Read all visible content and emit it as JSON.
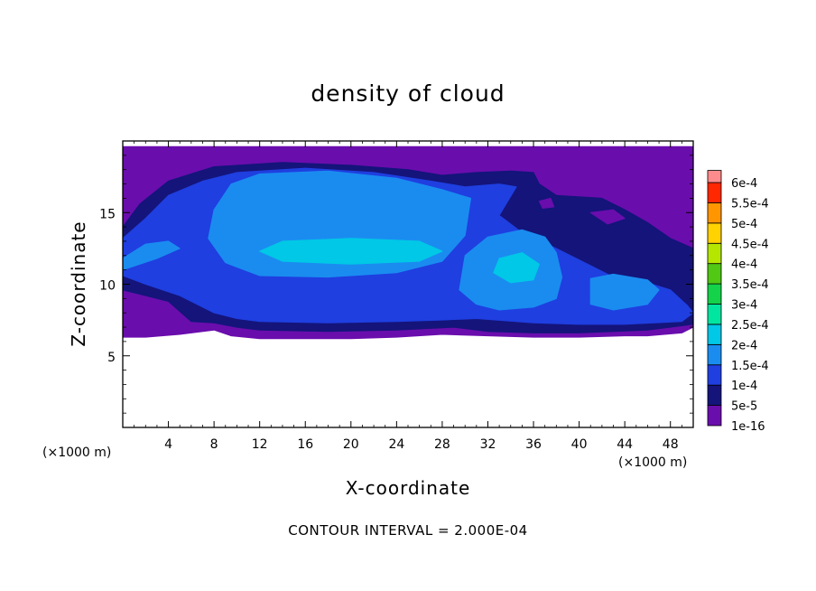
{
  "chart_data": {
    "type": "heatmap",
    "title": "density of cloud",
    "xlabel": "X-coordinate",
    "ylabel": "Z-coordinate",
    "x_unit": "(×1000 m)",
    "y_unit": "(×1000 m)",
    "xlim": [
      0,
      50
    ],
    "ylim": [
      0,
      20
    ],
    "x_ticks": [
      4,
      8,
      12,
      16,
      20,
      24,
      28,
      32,
      36,
      40,
      44,
      48
    ],
    "y_ticks": [
      5,
      10,
      15
    ],
    "footer": "CONTOUR INTERVAL = 2.000E-04",
    "colorbar": {
      "levels": [
        "1e-16",
        "5e-5",
        "1e-4",
        "1.5e-4",
        "2e-4",
        "2.5e-4",
        "3e-4",
        "3.5e-4",
        "4e-4",
        "4.5e-4",
        "5e-4",
        "5.5e-4",
        "6e-4"
      ],
      "colors": [
        "#6a0dad",
        "#14147a",
        "#1f3fe0",
        "#1a8cf0",
        "#00c8e6",
        "#00e6a0",
        "#14d24a",
        "#50c814",
        "#b4e600",
        "#ffd200",
        "#ff9600",
        "#ff2800",
        "#ff8c8c"
      ]
    },
    "regions": [
      {
        "level": 0,
        "points": [
          [
            0,
            19.6
          ],
          [
            50,
            19.6
          ],
          [
            50,
            7.0
          ],
          [
            49,
            6.6
          ],
          [
            46,
            6.4
          ],
          [
            44,
            6.4
          ],
          [
            40,
            6.3
          ],
          [
            36,
            6.3
          ],
          [
            32,
            6.4
          ],
          [
            28,
            6.5
          ],
          [
            24,
            6.3
          ],
          [
            20,
            6.2
          ],
          [
            16,
            6.2
          ],
          [
            12,
            6.2
          ],
          [
            9.5,
            6.4
          ],
          [
            8,
            6.8
          ],
          [
            5,
            6.5
          ],
          [
            2,
            6.3
          ],
          [
            0,
            6.3
          ]
        ]
      },
      {
        "level": 1,
        "points": [
          [
            0,
            14.0
          ],
          [
            1.5,
            15.6
          ],
          [
            4,
            17.2
          ],
          [
            8,
            18.2
          ],
          [
            14,
            18.5
          ],
          [
            20,
            18.3
          ],
          [
            25,
            18.0
          ],
          [
            28,
            17.6
          ],
          [
            31,
            17.8
          ],
          [
            34,
            17.9
          ],
          [
            36,
            17.8
          ],
          [
            36.5,
            17.0
          ],
          [
            38,
            16.2
          ],
          [
            42,
            16.0
          ],
          [
            44,
            15.2
          ],
          [
            46,
            14.3
          ],
          [
            48,
            13.2
          ],
          [
            50,
            12.5
          ],
          [
            50,
            7.2
          ],
          [
            46,
            6.8
          ],
          [
            40,
            6.6
          ],
          [
            36,
            6.6
          ],
          [
            32,
            6.7
          ],
          [
            29,
            7.0
          ],
          [
            24,
            6.8
          ],
          [
            18,
            6.7
          ],
          [
            12,
            6.8
          ],
          [
            10,
            7.0
          ],
          [
            8,
            7.3
          ],
          [
            6,
            7.4
          ],
          [
            4,
            8.8
          ],
          [
            2,
            9.2
          ],
          [
            0,
            9.6
          ]
        ]
      },
      {
        "level": 2,
        "points": [
          [
            0,
            13.2
          ],
          [
            2,
            14.6
          ],
          [
            4,
            16.2
          ],
          [
            7,
            17.2
          ],
          [
            10,
            17.8
          ],
          [
            16,
            18.1
          ],
          [
            22,
            17.8
          ],
          [
            27,
            17.2
          ],
          [
            30,
            16.8
          ],
          [
            33,
            17.0
          ],
          [
            34.5,
            16.8
          ],
          [
            33,
            14.8
          ],
          [
            35,
            13.6
          ],
          [
            38,
            12.5
          ],
          [
            40,
            11.7
          ],
          [
            43,
            10.5
          ],
          [
            46,
            10.1
          ],
          [
            48,
            9.6
          ],
          [
            49.5,
            8.5
          ],
          [
            50,
            8.0
          ],
          [
            49,
            7.4
          ],
          [
            44,
            7.2
          ],
          [
            40,
            7.2
          ],
          [
            36,
            7.3
          ],
          [
            31,
            7.6
          ],
          [
            28,
            7.5
          ],
          [
            24,
            7.4
          ],
          [
            18,
            7.3
          ],
          [
            12,
            7.4
          ],
          [
            10,
            7.6
          ],
          [
            8,
            8.0
          ],
          [
            5,
            9.2
          ],
          [
            2,
            10.0
          ],
          [
            0,
            10.6
          ]
        ]
      },
      {
        "level": 3,
        "points": [
          [
            8,
            15.2
          ],
          [
            9.5,
            17.0
          ],
          [
            12,
            17.7
          ],
          [
            18,
            17.9
          ],
          [
            24,
            17.4
          ],
          [
            28,
            16.6
          ],
          [
            30.5,
            16.0
          ],
          [
            30,
            13.4
          ],
          [
            28,
            11.6
          ],
          [
            24,
            10.8
          ],
          [
            18,
            10.5
          ],
          [
            12,
            10.6
          ],
          [
            9,
            11.5
          ],
          [
            7.5,
            13.2
          ]
        ]
      },
      {
        "level": 3,
        "points": [
          [
            30,
            12.0
          ],
          [
            32,
            13.3
          ],
          [
            35,
            13.8
          ],
          [
            37,
            13.3
          ],
          [
            38,
            12.2
          ],
          [
            38.5,
            10.5
          ],
          [
            38,
            9.0
          ],
          [
            36,
            8.4
          ],
          [
            33,
            8.2
          ],
          [
            31,
            8.6
          ],
          [
            29.5,
            9.6
          ]
        ]
      },
      {
        "level": 3,
        "points": [
          [
            0,
            11.8
          ],
          [
            2,
            12.8
          ],
          [
            4,
            13.0
          ],
          [
            5,
            12.5
          ],
          [
            3,
            11.8
          ],
          [
            0,
            11.0
          ]
        ]
      },
      {
        "level": 3,
        "points": [
          [
            41,
            10.4
          ],
          [
            43,
            10.7
          ],
          [
            46,
            10.3
          ],
          [
            47,
            9.6
          ],
          [
            46,
            8.6
          ],
          [
            43,
            8.2
          ],
          [
            41,
            8.6
          ]
        ]
      },
      {
        "level": 4,
        "points": [
          [
            14,
            13.0
          ],
          [
            20,
            13.2
          ],
          [
            26,
            13.0
          ],
          [
            28,
            12.3
          ],
          [
            26,
            11.6
          ],
          [
            20,
            11.4
          ],
          [
            14,
            11.6
          ],
          [
            12,
            12.3
          ]
        ]
      },
      {
        "level": 4,
        "points": [
          [
            33,
            11.8
          ],
          [
            35,
            12.2
          ],
          [
            36.5,
            11.4
          ],
          [
            36,
            10.3
          ],
          [
            34,
            10.1
          ],
          [
            32.5,
            10.8
          ]
        ]
      },
      {
        "level": 0,
        "points": [
          [
            41,
            15.0
          ],
          [
            43,
            15.2
          ],
          [
            44,
            14.6
          ],
          [
            42.5,
            14.2
          ]
        ]
      },
      {
        "level": 0,
        "points": [
          [
            36.5,
            15.8
          ],
          [
            37.5,
            16.0
          ],
          [
            37.8,
            15.4
          ],
          [
            36.8,
            15.3
          ]
        ]
      }
    ]
  }
}
